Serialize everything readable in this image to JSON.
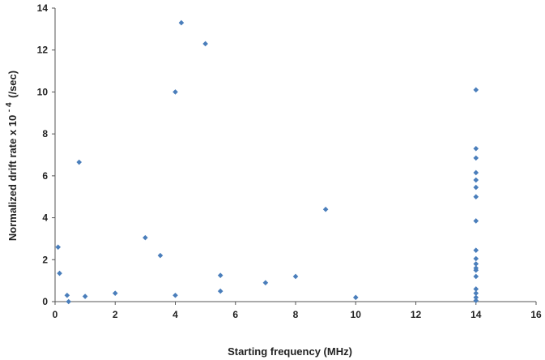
{
  "chart_data": {
    "type": "scatter",
    "xlabel": "Starting frequency (MHz)",
    "ylabel_main": "Normalized drift rate x 10",
    "ylabel_exp": "- 4",
    "ylabel_unit": "(/sec)",
    "xlim": [
      0,
      16
    ],
    "ylim": [
      0,
      14
    ],
    "x_ticks": [
      "0",
      "2",
      "4",
      "6",
      "8",
      "10",
      "12",
      "14",
      "16"
    ],
    "y_ticks": [
      "0",
      "2",
      "4",
      "6",
      "8",
      "10",
      "12",
      "14"
    ],
    "grid": false,
    "legend": "none",
    "marker_color": "#4a7ebb",
    "series": [
      {
        "points": [
          [
            0.1,
            2.6
          ],
          [
            0.15,
            1.35
          ],
          [
            0.4,
            0.3
          ],
          [
            0.45,
            0.0
          ],
          [
            0.8,
            6.65
          ],
          [
            1.0,
            0.25
          ],
          [
            2.0,
            0.4
          ],
          [
            3.0,
            3.05
          ],
          [
            3.5,
            2.2
          ],
          [
            4.0,
            10.0
          ],
          [
            4.0,
            0.3
          ],
          [
            4.2,
            13.3
          ],
          [
            5.0,
            12.3
          ],
          [
            5.5,
            1.25
          ],
          [
            5.5,
            0.5
          ],
          [
            7.0,
            0.9
          ],
          [
            8.0,
            1.2
          ],
          [
            9.0,
            4.4
          ],
          [
            10.0,
            0.2
          ],
          [
            14.0,
            10.1
          ],
          [
            14.0,
            7.3
          ],
          [
            14.0,
            6.85
          ],
          [
            14.0,
            6.15
          ],
          [
            14.0,
            5.8
          ],
          [
            14.0,
            5.45
          ],
          [
            14.0,
            5.0
          ],
          [
            14.0,
            3.85
          ],
          [
            14.0,
            2.45
          ],
          [
            14.0,
            2.05
          ],
          [
            14.0,
            1.8
          ],
          [
            14.0,
            1.6
          ],
          [
            14.0,
            1.5
          ],
          [
            14.0,
            1.2
          ],
          [
            14.0,
            0.6
          ],
          [
            14.0,
            0.4
          ],
          [
            14.0,
            0.2
          ],
          [
            14.0,
            0.05
          ]
        ]
      }
    ]
  }
}
